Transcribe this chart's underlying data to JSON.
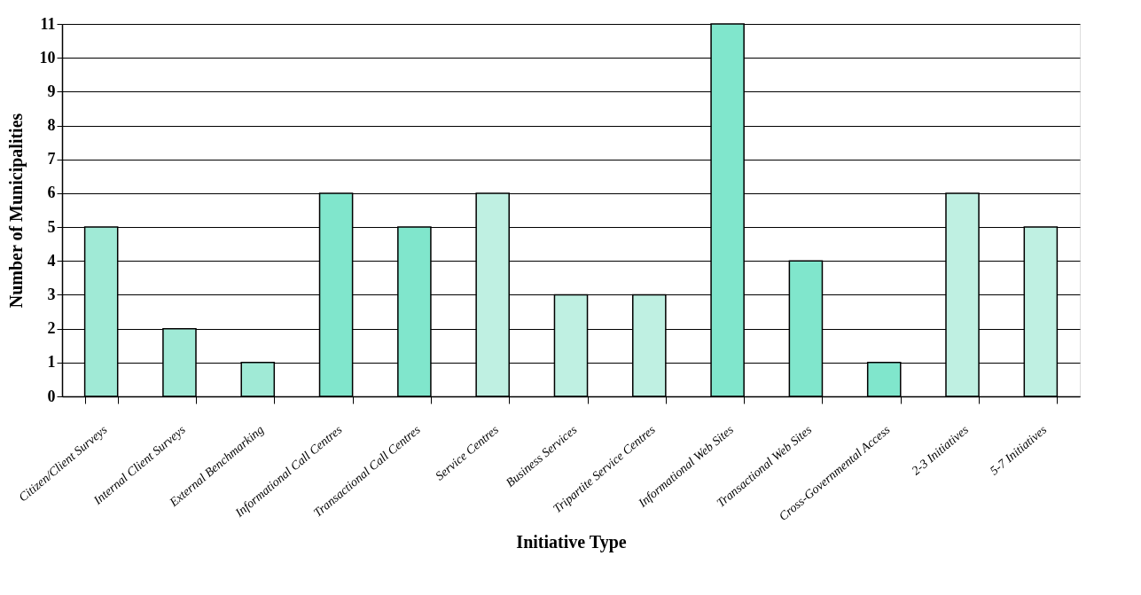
{
  "chart_data": {
    "type": "bar",
    "xlabel": "Initiative Type",
    "ylabel": "Number of Municipalities",
    "categories": [
      "Citizen/Client Surveys",
      "Internal Client Surveys",
      "External Benchmarking",
      "Informational Call Centres",
      "Transactional Call Centres",
      "Service Centres",
      "Business Services",
      "Tripartite Service Centres",
      "Informational Web Sites",
      "Transactional Web Sites",
      "Cross-Governmental Access",
      "2-3 Initiatives",
      "5-7 Initiatives"
    ],
    "values": [
      5,
      2,
      1,
      6,
      5,
      6,
      3,
      3,
      11,
      4,
      1,
      6,
      5
    ],
    "colors": [
      "#a0ead6",
      "#a0ead6",
      "#a0ead6",
      "#80e6cc",
      "#80e6cc",
      "#bff0e2",
      "#bff0e2",
      "#bff0e2",
      "#80e6cc",
      "#80e6cc",
      "#80e6cc",
      "#bff0e2",
      "#bff0e2"
    ],
    "ylim": [
      0,
      11
    ],
    "yticks": [
      0,
      1,
      2,
      3,
      4,
      5,
      6,
      7,
      8,
      9,
      10,
      11
    ],
    "grid": "y"
  }
}
